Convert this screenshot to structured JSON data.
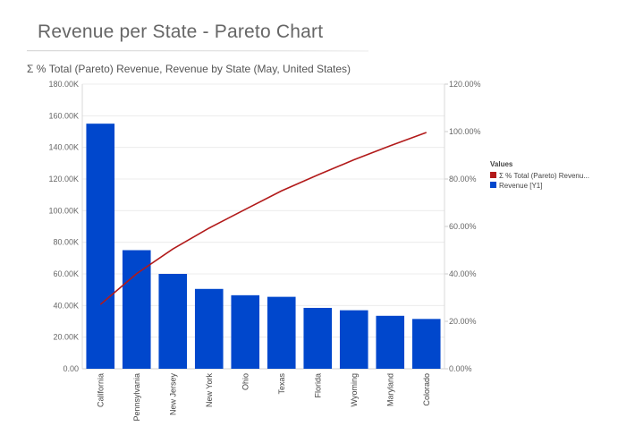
{
  "header": {
    "title": "Revenue per State - Pareto Chart"
  },
  "chart_data": {
    "type": "bar",
    "title": "Σ % Total (Pareto) Revenue, Revenue by State (May, United States)",
    "categories": [
      "California",
      "Pennsylvania",
      "New Jersey",
      "New York",
      "Ohio",
      "Texas",
      "Florida",
      "Wyoming",
      "Maryland",
      "Colorado"
    ],
    "series": [
      {
        "name": "Σ % Total (Pareto) Revenu...",
        "type": "line",
        "axis": "right",
        "color": "#b21a1a",
        "values": [
          27.1,
          40.1,
          50.5,
          59.3,
          67.2,
          75.0,
          81.7,
          88.1,
          94.0,
          99.6
        ]
      },
      {
        "name": "Revenue [Y1]",
        "type": "bar",
        "axis": "left",
        "color": "#0047cc",
        "values": [
          155000,
          75000,
          60000,
          50500,
          46500,
          45500,
          38500,
          37000,
          33500,
          31500
        ]
      }
    ],
    "y_left": {
      "ticks": [
        "0.00",
        "20.00K",
        "40.00K",
        "60.00K",
        "80.00K",
        "100.00K",
        "120.00K",
        "140.00K",
        "160.00K",
        "180.00K"
      ],
      "ylim": [
        0,
        180000
      ]
    },
    "y_right": {
      "ticks": [
        "0.00%",
        "20.00%",
        "40.00%",
        "60.00%",
        "80.00%",
        "100.00%",
        "120.00%"
      ],
      "ylim": [
        0,
        120
      ]
    },
    "grid": true,
    "legend": {
      "title": "Values",
      "position": "right"
    }
  }
}
